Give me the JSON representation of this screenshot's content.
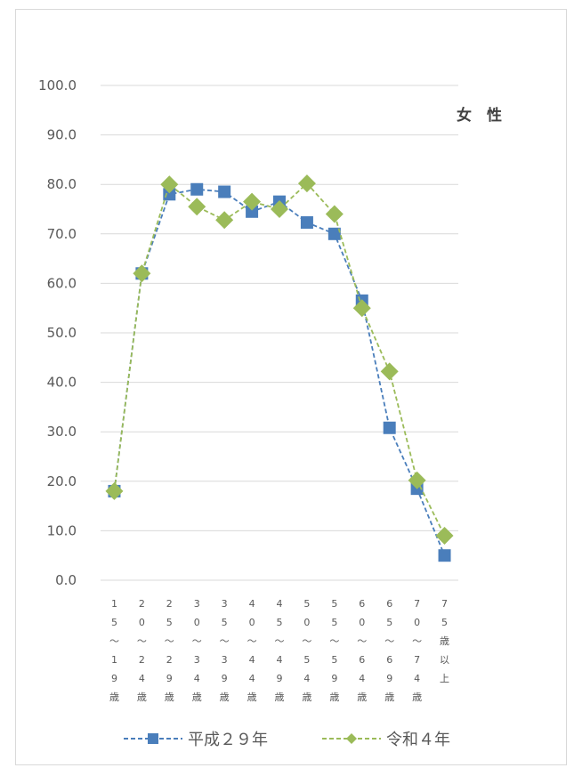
{
  "chart_data": {
    "type": "line",
    "title": "",
    "annotation": "女　性",
    "xlabel": "",
    "ylabel": "",
    "ylim": [
      0,
      100
    ],
    "yticks": [
      "0.0",
      "10.0",
      "20.0",
      "30.0",
      "40.0",
      "50.0",
      "60.0",
      "70.0",
      "80.0",
      "90.0",
      "100.0"
    ],
    "categories": [
      "15～19歳",
      "20～24歳",
      "25～29歳",
      "30～34歳",
      "35～39歳",
      "40～44歳",
      "45～49歳",
      "50～54歳",
      "55～59歳",
      "60～64歳",
      "65～69歳",
      "70～74歳",
      "75歳以上"
    ],
    "category_label_chars": [
      [
        "1",
        "5",
        "～",
        "1",
        "9",
        "歳"
      ],
      [
        "2",
        "0",
        "～",
        "2",
        "4",
        "歳"
      ],
      [
        "2",
        "5",
        "～",
        "2",
        "9",
        "歳"
      ],
      [
        "3",
        "0",
        "～",
        "3",
        "4",
        "歳"
      ],
      [
        "3",
        "5",
        "～",
        "3",
        "9",
        "歳"
      ],
      [
        "4",
        "0",
        "～",
        "4",
        "4",
        "歳"
      ],
      [
        "4",
        "5",
        "～",
        "4",
        "9",
        "歳"
      ],
      [
        "5",
        "0",
        "～",
        "5",
        "4",
        "歳"
      ],
      [
        "5",
        "5",
        "～",
        "5",
        "9",
        "歳"
      ],
      [
        "6",
        "0",
        "～",
        "6",
        "4",
        "歳"
      ],
      [
        "6",
        "5",
        "～",
        "6",
        "9",
        "歳"
      ],
      [
        "7",
        "0",
        "～",
        "7",
        "4",
        "歳"
      ],
      [
        "7",
        "5",
        "歳",
        "以",
        "上"
      ]
    ],
    "grid": true,
    "legend_position": "bottom",
    "series": [
      {
        "name": "平成２９年",
        "color": "#4a7ebb",
        "marker": "square",
        "line_style": "dashed",
        "values": [
          18.0,
          62.0,
          78.0,
          79.0,
          78.5,
          74.5,
          76.5,
          72.3,
          70.0,
          56.5,
          30.8,
          18.5,
          5.0
        ]
      },
      {
        "name": "令和４年",
        "color": "#9bbb59",
        "marker": "diamond",
        "line_style": "dashed",
        "values": [
          18.0,
          62.0,
          80.0,
          75.5,
          72.8,
          76.5,
          75.0,
          80.2,
          74.0,
          55.0,
          42.2,
          20.2,
          9.0
        ]
      }
    ]
  }
}
